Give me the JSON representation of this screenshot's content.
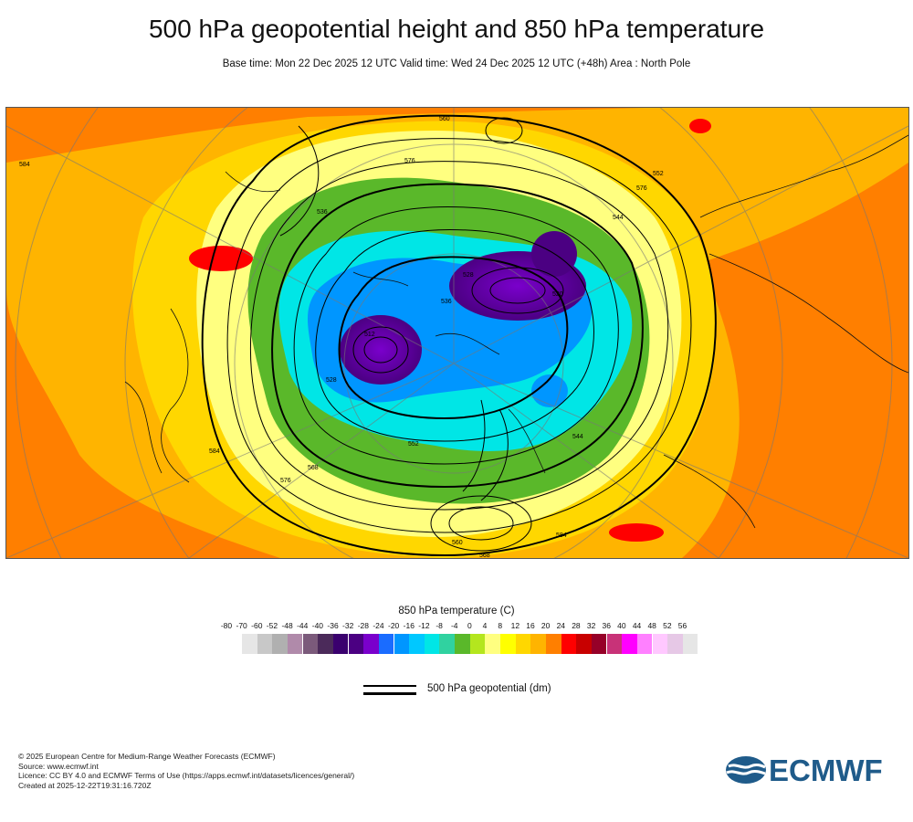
{
  "header": {
    "title": "500 hPa geopotential height and 850 hPa temperature",
    "subtitle": "Base time: Mon 22 Dec 2025 12 UTC Valid time: Wed 24 Dec 2025 12 UTC (+48h) Area : North Pole"
  },
  "map": {
    "contour_labels": [
      "584",
      "560",
      "576",
      "536",
      "528",
      "552",
      "544",
      "520",
      "512",
      "568",
      "584",
      "560",
      "568",
      "576",
      "552",
      "544",
      "536",
      "528",
      "584",
      "576"
    ]
  },
  "legend": {
    "title": "850 hPa temperature (C)",
    "ticks": [
      "-80",
      "-70",
      "-60",
      "-52",
      "-48",
      "-44",
      "-40",
      "-36",
      "-32",
      "-28",
      "-24",
      "-20",
      "-16",
      "-12",
      "-8",
      "-4",
      "0",
      "4",
      "8",
      "12",
      "16",
      "20",
      "24",
      "28",
      "32",
      "36",
      "40",
      "44",
      "48",
      "52",
      "56"
    ],
    "colors": [
      "#e6e6e6",
      "#c8c8c8",
      "#b0b0b0",
      "#b08aaa",
      "#7b5a7b",
      "#4b2a5a",
      "#3a006e",
      "#4b0082",
      "#7a00cc",
      "#1a6cff",
      "#0096ff",
      "#00c8ff",
      "#00e6e6",
      "#30d2a0",
      "#5ab82a",
      "#b4e61e",
      "#ffff80",
      "#ffff00",
      "#ffd700",
      "#ffb400",
      "#ff7f00",
      "#ff0000",
      "#c80000",
      "#960028",
      "#c83278",
      "#ff00ff",
      "#ff80ff",
      "#ffc8ff",
      "#e6c8e6",
      "#e6e6e6"
    ],
    "geopotential_label": "500 hPa geopotential (dm)"
  },
  "credits": {
    "line1": "© 2025 European Centre for Medium-Range Weather Forecasts (ECMWF)",
    "line2": "Source: www.ecmwf.int",
    "line3": "Licence: CC BY 4.0 and ECMWF Terms of Use (https://apps.ecmwf.int/datasets/licences/general/)",
    "line4": "Created at 2025-12-22T19:31:16.720Z"
  },
  "logo": {
    "text": "ECMWF",
    "color": "#1f5b8a"
  }
}
